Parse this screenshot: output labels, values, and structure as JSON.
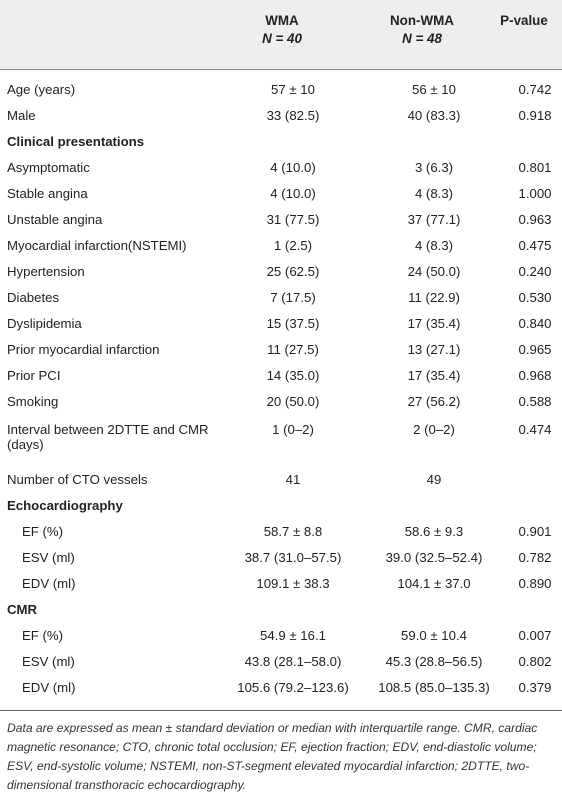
{
  "header": {
    "col_wma_title": "WMA",
    "col_wma_n": "N = 40",
    "col_nonwma_title": "Non-WMA",
    "col_nonwma_n": "N = 48",
    "col_p": "P-value"
  },
  "rows": [
    {
      "label": "Age (years)",
      "wma": "57 ± 10",
      "nonwma": "56 ± 10",
      "p": "0.742"
    },
    {
      "label": "Male",
      "wma": "33 (82.5)",
      "nonwma": "40 (83.3)",
      "p": "0.918"
    },
    {
      "label": "Clinical presentations",
      "wma": "",
      "nonwma": "",
      "p": ""
    },
    {
      "label": "Asymptomatic",
      "wma": "4 (10.0)",
      "nonwma": "3 (6.3)",
      "p": "0.801"
    },
    {
      "label": "Stable angina",
      "wma": "4 (10.0)",
      "nonwma": "4 (8.3)",
      "p": "1.000"
    },
    {
      "label": "Unstable angina",
      "wma": "31 (77.5)",
      "nonwma": "37 (77.1)",
      "p": "0.963"
    },
    {
      "label": "Myocardial infarction(NSTEMI)",
      "wma": "1 (2.5)",
      "nonwma": "4 (8.3)",
      "p": "0.475"
    },
    {
      "label": "Hypertension",
      "wma": "25 (62.5)",
      "nonwma": "24 (50.0)",
      "p": "0.240"
    },
    {
      "label": "Diabetes",
      "wma": "7 (17.5)",
      "nonwma": "11 (22.9)",
      "p": "0.530"
    },
    {
      "label": "Dyslipidemia",
      "wma": "15 (37.5)",
      "nonwma": "17 (35.4)",
      "p": "0.840"
    },
    {
      "label": "Prior myocardial infarction",
      "wma": "11 (27.5)",
      "nonwma": "13 (27.1)",
      "p": "0.965"
    },
    {
      "label": "Prior PCI",
      "wma": "14 (35.0)",
      "nonwma": "17 (35.4)",
      "p": "0.968"
    },
    {
      "label": "Smoking",
      "wma": "20 (50.0)",
      "nonwma": "27 (56.2)",
      "p": "0.588"
    },
    {
      "label": "Interval between 2DTTE and CMR",
      "wma": "1 (0–2)",
      "nonwma": "2 (0–2)",
      "p": "0.474"
    },
    {
      "label": "(days)",
      "wma": "",
      "nonwma": "",
      "p": ""
    },
    {
      "label": "Number of CTO vessels",
      "wma": "41",
      "nonwma": "49",
      "p": ""
    },
    {
      "label": "Echocardiography",
      "wma": "",
      "nonwma": "",
      "p": ""
    },
    {
      "label": "EF (%)",
      "wma": "58.7 ± 8.8",
      "nonwma": "58.6 ± 9.3",
      "p": "0.901"
    },
    {
      "label": "ESV (ml)",
      "wma": "38.7 (31.0–57.5)",
      "nonwma": "39.0 (32.5–52.4)",
      "p": "0.782"
    },
    {
      "label": "EDV (ml)",
      "wma": "109.1 ± 38.3",
      "nonwma": "104.1 ± 37.0",
      "p": "0.890"
    },
    {
      "label": "CMR",
      "wma": "",
      "nonwma": "",
      "p": ""
    },
    {
      "label": "EF (%)",
      "wma": "54.9 ± 16.1",
      "nonwma": "59.0 ± 10.4",
      "p": "0.007"
    },
    {
      "label": "ESV (ml)",
      "wma": "43.8 (28.1–58.0)",
      "nonwma": "45.3 (28.8–56.5)",
      "p": "0.802"
    },
    {
      "label": "EDV (ml)",
      "wma": "105.6 (79.2–123.6)",
      "nonwma": "108.5 (85.0–135.3)",
      "p": "0.379"
    }
  ],
  "footnote": "Data are expressed as mean ± standard deviation or median with interquartile range. CMR, cardiac magnetic resonance; CTO, chronic total occlusion; EF, ejection fraction; EDV, end-diastolic volume; ESV, end-systolic volume; NSTEMI, non-ST-segment elevated myocardial infarction; 2DTTE, two-dimensional transthoracic echocardiography."
}
